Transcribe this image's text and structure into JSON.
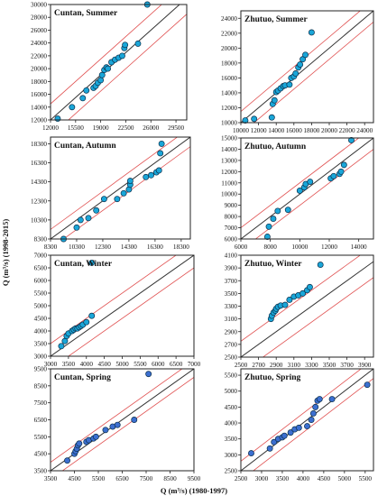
{
  "figure": {
    "ylabel": "Q (m³/s) (1998-2015)",
    "xlabel": "Q (m³/s) (1980-1997)"
  },
  "colors": {
    "marker_fill": "#1aa6d8",
    "marker_fill_spring": "#3c6fd0",
    "marker_edge": "#0b2e4a",
    "identity_line": "#333333",
    "band_line": "#e05050"
  },
  "chart_data": [
    {
      "type": "scatter",
      "title": "Cuntan, Summer",
      "xlim": [
        12000,
        31000
      ],
      "ylim": [
        12000,
        30000
      ],
      "band": 2500,
      "xticks": [
        12000,
        15500,
        19000,
        22500,
        26000,
        29500
      ],
      "yticks": [
        12000,
        14000,
        16000,
        18000,
        20000,
        22000,
        24000,
        26000,
        28000,
        30000
      ],
      "points": [
        [
          13000,
          12200
        ],
        [
          15000,
          14000
        ],
        [
          16500,
          15400
        ],
        [
          17000,
          16600
        ],
        [
          18000,
          17000
        ],
        [
          18300,
          17300
        ],
        [
          18600,
          17800
        ],
        [
          19000,
          18200
        ],
        [
          19200,
          19000
        ],
        [
          19500,
          19800
        ],
        [
          19800,
          20200
        ],
        [
          20000,
          20000
        ],
        [
          20500,
          21000
        ],
        [
          21000,
          21400
        ],
        [
          21500,
          21700
        ],
        [
          22000,
          22000
        ],
        [
          22300,
          23200
        ],
        [
          22400,
          23700
        ],
        [
          24200,
          23900
        ],
        [
          25500,
          30000
        ]
      ]
    },
    {
      "type": "scatter",
      "title": "Zhutuo, Summer",
      "xlim": [
        10000,
        25000
      ],
      "ylim": [
        10000,
        25000
      ],
      "band": 1500,
      "xticks": [
        10000,
        12000,
        14000,
        16000,
        18000,
        20000,
        22000,
        24000
      ],
      "yticks": [
        10000,
        12000,
        14000,
        16000,
        18000,
        20000,
        22000,
        24000
      ],
      "points": [
        [
          10500,
          10300
        ],
        [
          11500,
          10500
        ],
        [
          13500,
          10700
        ],
        [
          13600,
          12500
        ],
        [
          13800,
          13000
        ],
        [
          14000,
          14100
        ],
        [
          14200,
          14300
        ],
        [
          14500,
          14600
        ],
        [
          14800,
          14900
        ],
        [
          15000,
          15000
        ],
        [
          15500,
          15100
        ],
        [
          15700,
          16000
        ],
        [
          16000,
          16200
        ],
        [
          16200,
          16600
        ],
        [
          16500,
          17400
        ],
        [
          16700,
          17800
        ],
        [
          17000,
          18500
        ],
        [
          17300,
          19100
        ],
        [
          18000,
          22100
        ]
      ]
    },
    {
      "type": "scatter",
      "title": "Cuntan, Autumn",
      "xlim": [
        8300,
        19000
      ],
      "ylim": [
        8300,
        19000
      ],
      "band": 1000,
      "xticks": [
        8300,
        10300,
        12300,
        14300,
        16300,
        18300
      ],
      "yticks": [
        8300,
        10300,
        12300,
        14300,
        16300,
        18300
      ],
      "points": [
        [
          9300,
          8300
        ],
        [
          10300,
          9500
        ],
        [
          10600,
          10300
        ],
        [
          11200,
          10500
        ],
        [
          11800,
          11300
        ],
        [
          12400,
          12500
        ],
        [
          13400,
          12500
        ],
        [
          13900,
          13100
        ],
        [
          14300,
          13500
        ],
        [
          14400,
          14000
        ],
        [
          14400,
          14400
        ],
        [
          15600,
          14800
        ],
        [
          16000,
          15000
        ],
        [
          16400,
          15300
        ],
        [
          16600,
          15500
        ],
        [
          16700,
          17300
        ],
        [
          16800,
          18300
        ]
      ]
    },
    {
      "type": "scatter",
      "title": "Zhutuo, Autumn",
      "xlim": [
        6000,
        15000
      ],
      "ylim": [
        6000,
        15000
      ],
      "band": 1000,
      "xticks": [
        6000,
        8000,
        10000,
        12000,
        14000
      ],
      "yticks": [
        6000,
        7000,
        8000,
        9000,
        10000,
        11000,
        12000,
        13000,
        14000,
        15000
      ],
      "points": [
        [
          7800,
          6200
        ],
        [
          7900,
          7100
        ],
        [
          8200,
          7800
        ],
        [
          8500,
          8500
        ],
        [
          9200,
          8600
        ],
        [
          10000,
          10300
        ],
        [
          10300,
          10600
        ],
        [
          10400,
          10900
        ],
        [
          10700,
          11100
        ],
        [
          12100,
          11400
        ],
        [
          12300,
          11600
        ],
        [
          12700,
          11800
        ],
        [
          12800,
          12000
        ],
        [
          13000,
          12600
        ],
        [
          13500,
          14800
        ]
      ]
    },
    {
      "type": "scatter",
      "title": "Cuntan, Winter",
      "xlim": [
        3000,
        7000
      ],
      "ylim": [
        3000,
        7000
      ],
      "band": 500,
      "xticks": [
        3000,
        3500,
        4000,
        4500,
        5000,
        5500,
        6000,
        6500,
        7000
      ],
      "yticks": [
        3000,
        3500,
        4000,
        4500,
        5000,
        5500,
        6000,
        6500,
        7000
      ],
      "points": [
        [
          3300,
          3400
        ],
        [
          3400,
          3600
        ],
        [
          3450,
          3800
        ],
        [
          3500,
          3900
        ],
        [
          3600,
          4000
        ],
        [
          3650,
          4050
        ],
        [
          3700,
          4100
        ],
        [
          3750,
          4100
        ],
        [
          3800,
          4150
        ],
        [
          3850,
          4200
        ],
        [
          3900,
          4250
        ],
        [
          4000,
          4350
        ],
        [
          4150,
          4600
        ],
        [
          4150,
          6700
        ]
      ]
    },
    {
      "type": "scatter",
      "title": "Zhutuo, Winter",
      "xlim": [
        2500,
        4000
      ],
      "ylim": [
        2500,
        4100
      ],
      "band": 250,
      "xticks": [
        2500,
        2700,
        2900,
        3100,
        3300,
        3500,
        3700,
        3900
      ],
      "yticks": [
        2500,
        2700,
        2900,
        3100,
        3300,
        3500,
        3700,
        3900,
        4100
      ],
      "points": [
        [
          2840,
          3100
        ],
        [
          2850,
          3150
        ],
        [
          2870,
          3200
        ],
        [
          2890,
          3230
        ],
        [
          2900,
          3260
        ],
        [
          2920,
          3290
        ],
        [
          2950,
          3310
        ],
        [
          3000,
          3320
        ],
        [
          3050,
          3400
        ],
        [
          3100,
          3450
        ],
        [
          3150,
          3470
        ],
        [
          3200,
          3500
        ],
        [
          3250,
          3550
        ],
        [
          3280,
          3600
        ],
        [
          3400,
          3950
        ]
      ]
    },
    {
      "type": "scatter",
      "title": "Cuntan, Spring",
      "xlim": [
        3500,
        9500
      ],
      "ylim": [
        3500,
        9500
      ],
      "band": 500,
      "xticks": [
        3500,
        4500,
        5500,
        6500,
        7500,
        8500,
        9500
      ],
      "yticks": [
        3500,
        4500,
        5500,
        6500,
        7500,
        8500,
        9500
      ],
      "points": [
        [
          4200,
          4100
        ],
        [
          4500,
          4500
        ],
        [
          4550,
          4650
        ],
        [
          4600,
          4800
        ],
        [
          4650,
          5000
        ],
        [
          4700,
          5100
        ],
        [
          5000,
          5200
        ],
        [
          5100,
          5300
        ],
        [
          5300,
          5400
        ],
        [
          5400,
          5500
        ],
        [
          5800,
          5900
        ],
        [
          6100,
          6100
        ],
        [
          6300,
          6200
        ],
        [
          7000,
          6500
        ],
        [
          7600,
          9200
        ]
      ]
    },
    {
      "type": "scatter",
      "title": "Zhutuo, Spring",
      "xlim": [
        2500,
        5700
      ],
      "ylim": [
        2500,
        5700
      ],
      "band": 300,
      "xticks": [
        2500,
        3000,
        3500,
        4000,
        4500,
        5000,
        5500
      ],
      "yticks": [
        2500,
        3000,
        3500,
        4000,
        4500,
        5000,
        5500
      ],
      "points": [
        [
          2750,
          3050
        ],
        [
          3200,
          3200
        ],
        [
          3300,
          3400
        ],
        [
          3400,
          3500
        ],
        [
          3500,
          3550
        ],
        [
          3550,
          3600
        ],
        [
          3700,
          3700
        ],
        [
          3800,
          3800
        ],
        [
          3900,
          3850
        ],
        [
          4100,
          3900
        ],
        [
          4200,
          4100
        ],
        [
          4250,
          4300
        ],
        [
          4300,
          4500
        ],
        [
          4350,
          4700
        ],
        [
          4400,
          4750
        ],
        [
          4700,
          4750
        ],
        [
          5550,
          5200
        ]
      ]
    }
  ]
}
